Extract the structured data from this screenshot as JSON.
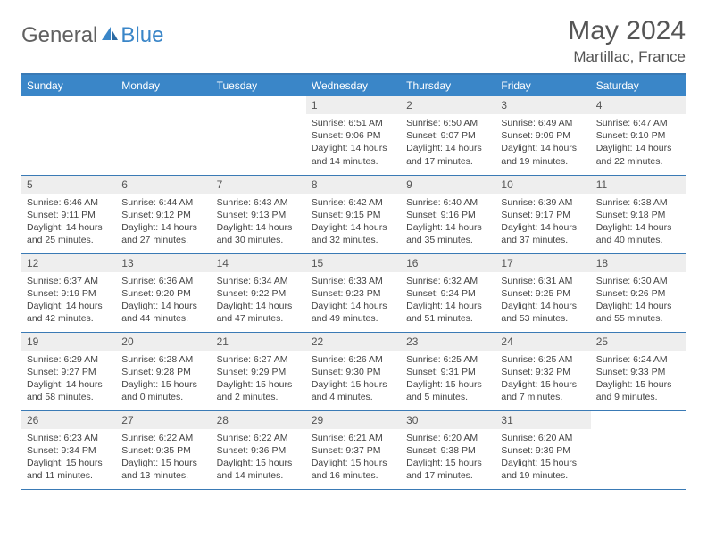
{
  "logo": {
    "general": "General",
    "blue": "Blue"
  },
  "title": "May 2024",
  "location": "Martillac, France",
  "colors": {
    "header_bg": "#3a86c8",
    "border": "#3a7ab5",
    "daynum_bg": "#eeeeee",
    "text": "#555555",
    "logo_gray": "#606060",
    "logo_blue": "#3a86c8"
  },
  "weekdays": [
    "Sunday",
    "Monday",
    "Tuesday",
    "Wednesday",
    "Thursday",
    "Friday",
    "Saturday"
  ],
  "weeks": [
    [
      {
        "n": "",
        "sr": "",
        "ss": "",
        "dl": ""
      },
      {
        "n": "",
        "sr": "",
        "ss": "",
        "dl": ""
      },
      {
        "n": "",
        "sr": "",
        "ss": "",
        "dl": ""
      },
      {
        "n": "1",
        "sr": "6:51 AM",
        "ss": "9:06 PM",
        "dl": "14 hours and 14 minutes."
      },
      {
        "n": "2",
        "sr": "6:50 AM",
        "ss": "9:07 PM",
        "dl": "14 hours and 17 minutes."
      },
      {
        "n": "3",
        "sr": "6:49 AM",
        "ss": "9:09 PM",
        "dl": "14 hours and 19 minutes."
      },
      {
        "n": "4",
        "sr": "6:47 AM",
        "ss": "9:10 PM",
        "dl": "14 hours and 22 minutes."
      }
    ],
    [
      {
        "n": "5",
        "sr": "6:46 AM",
        "ss": "9:11 PM",
        "dl": "14 hours and 25 minutes."
      },
      {
        "n": "6",
        "sr": "6:44 AM",
        "ss": "9:12 PM",
        "dl": "14 hours and 27 minutes."
      },
      {
        "n": "7",
        "sr": "6:43 AM",
        "ss": "9:13 PM",
        "dl": "14 hours and 30 minutes."
      },
      {
        "n": "8",
        "sr": "6:42 AM",
        "ss": "9:15 PM",
        "dl": "14 hours and 32 minutes."
      },
      {
        "n": "9",
        "sr": "6:40 AM",
        "ss": "9:16 PM",
        "dl": "14 hours and 35 minutes."
      },
      {
        "n": "10",
        "sr": "6:39 AM",
        "ss": "9:17 PM",
        "dl": "14 hours and 37 minutes."
      },
      {
        "n": "11",
        "sr": "6:38 AM",
        "ss": "9:18 PM",
        "dl": "14 hours and 40 minutes."
      }
    ],
    [
      {
        "n": "12",
        "sr": "6:37 AM",
        "ss": "9:19 PM",
        "dl": "14 hours and 42 minutes."
      },
      {
        "n": "13",
        "sr": "6:36 AM",
        "ss": "9:20 PM",
        "dl": "14 hours and 44 minutes."
      },
      {
        "n": "14",
        "sr": "6:34 AM",
        "ss": "9:22 PM",
        "dl": "14 hours and 47 minutes."
      },
      {
        "n": "15",
        "sr": "6:33 AM",
        "ss": "9:23 PM",
        "dl": "14 hours and 49 minutes."
      },
      {
        "n": "16",
        "sr": "6:32 AM",
        "ss": "9:24 PM",
        "dl": "14 hours and 51 minutes."
      },
      {
        "n": "17",
        "sr": "6:31 AM",
        "ss": "9:25 PM",
        "dl": "14 hours and 53 minutes."
      },
      {
        "n": "18",
        "sr": "6:30 AM",
        "ss": "9:26 PM",
        "dl": "14 hours and 55 minutes."
      }
    ],
    [
      {
        "n": "19",
        "sr": "6:29 AM",
        "ss": "9:27 PM",
        "dl": "14 hours and 58 minutes."
      },
      {
        "n": "20",
        "sr": "6:28 AM",
        "ss": "9:28 PM",
        "dl": "15 hours and 0 minutes."
      },
      {
        "n": "21",
        "sr": "6:27 AM",
        "ss": "9:29 PM",
        "dl": "15 hours and 2 minutes."
      },
      {
        "n": "22",
        "sr": "6:26 AM",
        "ss": "9:30 PM",
        "dl": "15 hours and 4 minutes."
      },
      {
        "n": "23",
        "sr": "6:25 AM",
        "ss": "9:31 PM",
        "dl": "15 hours and 5 minutes."
      },
      {
        "n": "24",
        "sr": "6:25 AM",
        "ss": "9:32 PM",
        "dl": "15 hours and 7 minutes."
      },
      {
        "n": "25",
        "sr": "6:24 AM",
        "ss": "9:33 PM",
        "dl": "15 hours and 9 minutes."
      }
    ],
    [
      {
        "n": "26",
        "sr": "6:23 AM",
        "ss": "9:34 PM",
        "dl": "15 hours and 11 minutes."
      },
      {
        "n": "27",
        "sr": "6:22 AM",
        "ss": "9:35 PM",
        "dl": "15 hours and 13 minutes."
      },
      {
        "n": "28",
        "sr": "6:22 AM",
        "ss": "9:36 PM",
        "dl": "15 hours and 14 minutes."
      },
      {
        "n": "29",
        "sr": "6:21 AM",
        "ss": "9:37 PM",
        "dl": "15 hours and 16 minutes."
      },
      {
        "n": "30",
        "sr": "6:20 AM",
        "ss": "9:38 PM",
        "dl": "15 hours and 17 minutes."
      },
      {
        "n": "31",
        "sr": "6:20 AM",
        "ss": "9:39 PM",
        "dl": "15 hours and 19 minutes."
      },
      {
        "n": "",
        "sr": "",
        "ss": "",
        "dl": ""
      }
    ]
  ],
  "labels": {
    "sunrise": "Sunrise:",
    "sunset": "Sunset:",
    "daylight": "Daylight:"
  }
}
